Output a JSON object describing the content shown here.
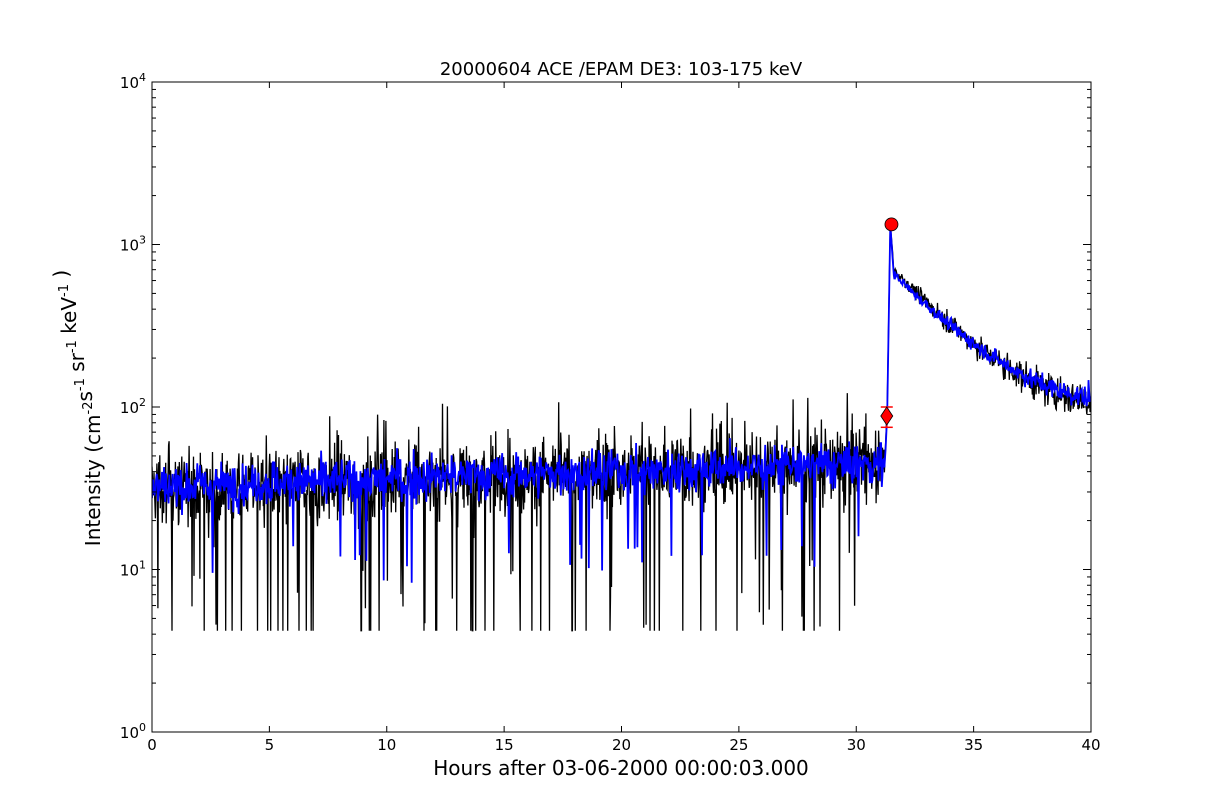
{
  "chart_data": {
    "type": "line",
    "title": "20000604 ACE /EPAM DE3: 103-175 keV",
    "xlabel": "Hours after 03-06-2000 00:00:03.000",
    "ylabel_main": "Intensity (cm",
    "ylabel_parts": [
      "-2",
      "s",
      "-1",
      "sr",
      "-1",
      "keV",
      "-1",
      ")"
    ],
    "xlim": [
      0,
      40
    ],
    "ylim": [
      1,
      10000
    ],
    "yscale": "log",
    "grid": false,
    "x_ticks": [
      0,
      5,
      10,
      15,
      20,
      25,
      30,
      35,
      40
    ],
    "x_tick_labels": [
      "0",
      "5",
      "10",
      "15",
      "20",
      "25",
      "30",
      "35",
      "40"
    ],
    "y_ticks": [
      1,
      10,
      100,
      1000,
      10000
    ],
    "y_tick_labels": [
      {
        "base": "10",
        "exp": "0"
      },
      {
        "base": "10",
        "exp": "1"
      },
      {
        "base": "10",
        "exp": "2"
      },
      {
        "base": "10",
        "exp": "3"
      },
      {
        "base": "10",
        "exp": "4"
      }
    ],
    "series": [
      {
        "style": "raw",
        "color": "#000000",
        "baseline_before": {
          "x_start": 0,
          "x_end": 31.2,
          "y_start": 30,
          "y_end": 45,
          "y_min_floor": 4.2
        },
        "decay_after": {
          "x_start": 31.6,
          "x_end": 40,
          "y_start": 700,
          "y_end": 110
        }
      },
      {
        "style": "smoothed",
        "color": "#0000ff",
        "baseline_before": {
          "x_start": 0,
          "x_end": 31.2,
          "y_start": 32,
          "y_end": 45
        },
        "decay_after": {
          "x_start": 31.6,
          "x_end": 40,
          "y_start": 660,
          "y_end": 115
        }
      }
    ],
    "markers": [
      {
        "type": "diamond",
        "x": 31.3,
        "y": 88,
        "color": "#ff0000",
        "err_low": 75,
        "err_high": 100
      },
      {
        "type": "circle",
        "x": 31.5,
        "y": 1330,
        "color": "#ff0000"
      }
    ],
    "colors": {
      "raw": "#000000",
      "smoothed": "#0000ff",
      "marker": "#ff0000"
    }
  }
}
